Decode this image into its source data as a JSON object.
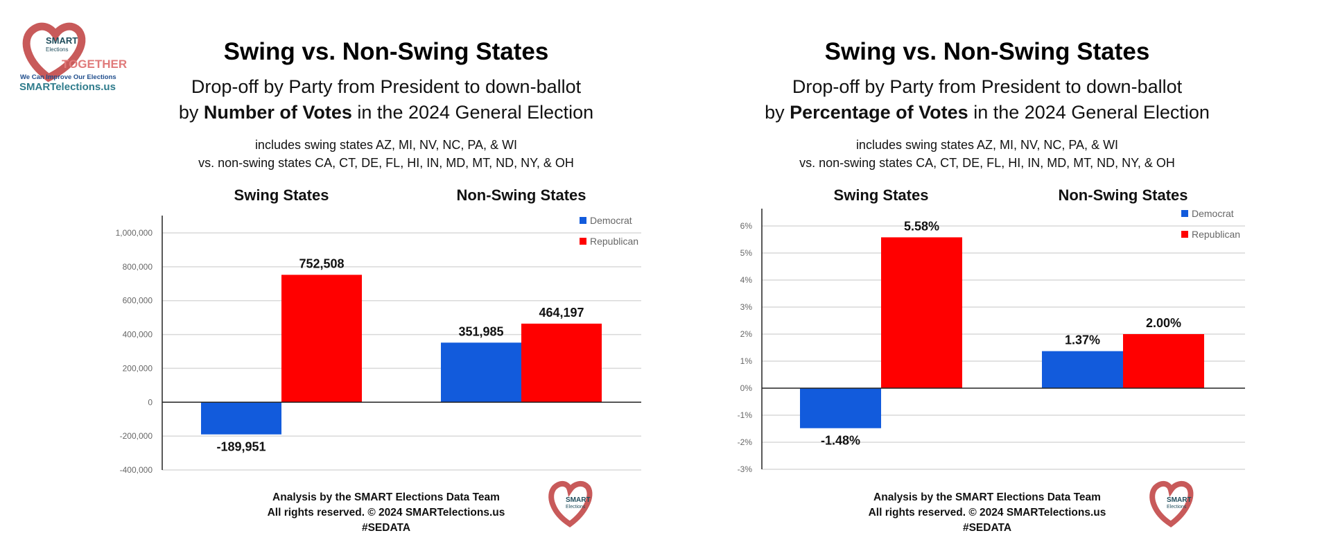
{
  "logo": {
    "brand_top": "SMART",
    "brand_bottom": "Elections",
    "together": "TOGETHER",
    "tagline": "We Can Improve Our Elections",
    "url": "SMARTelections.us"
  },
  "colors": {
    "democrat": "#125bdc",
    "republican": "#ff0000",
    "grid": "#d9d9d9",
    "logo_red": "#c85a5a",
    "logo_teal": "#2f7c8c"
  },
  "footer": {
    "line1": "Analysis by the SMART Elections Data Team",
    "line2": "All rights reserved. © 2024 SMARTelections.us",
    "line3": "#SEDATA"
  },
  "chart_data": [
    {
      "type": "bar",
      "title": "Swing vs. Non-Swing States",
      "subtitle_line1": "Drop-off by Party from President to down-ballot",
      "subtitle_prefix": "by ",
      "subtitle_bold": "Number of Votes",
      "subtitle_suffix": " in the 2024 General Election",
      "note_line1": "includes swing states AZ, MI, NV, NC, PA, & WI",
      "note_line2": "vs. non-swing states CA, CT, DE, FL, HI, IN, MD, MT, ND, NY, & OH",
      "categories": [
        "Swing States",
        "Non-Swing States"
      ],
      "series": [
        {
          "name": "Democrat",
          "values": [
            -189951,
            351985
          ],
          "labels": [
            "-189,951",
            "351,985"
          ]
        },
        {
          "name": "Republican",
          "values": [
            752508,
            464197
          ],
          "labels": [
            "752,508",
            "464,197"
          ]
        }
      ],
      "ylim": [
        -400000,
        1000000
      ],
      "yticks": [
        1000000,
        800000,
        600000,
        400000,
        200000,
        0,
        -200000,
        -400000
      ],
      "ytick_labels": [
        "1,000,000",
        "800,000",
        "600,000",
        "400,000",
        "200,000",
        "0",
        "-200,000",
        "-400,000"
      ],
      "grid": true,
      "legend": "top-right"
    },
    {
      "type": "bar",
      "title": "Swing vs. Non-Swing States",
      "subtitle_line1": "Drop-off by Party from President to down-ballot",
      "subtitle_prefix": "by ",
      "subtitle_bold": "Percentage of Votes",
      "subtitle_suffix": " in the 2024 General Election",
      "note_line1": "includes swing states AZ, MI, NV, NC, PA, & WI",
      "note_line2": "vs. non-swing states CA, CT, DE, FL, HI, IN, MD, MT, ND, NY, & OH",
      "categories": [
        "Swing States",
        "Non-Swing States"
      ],
      "series": [
        {
          "name": "Democrat",
          "values": [
            -1.48,
            1.37
          ],
          "labels": [
            "-1.48%",
            "1.37%"
          ]
        },
        {
          "name": "Republican",
          "values": [
            5.58,
            2.0
          ],
          "labels": [
            "5.58%",
            "2.00%"
          ]
        }
      ],
      "ylim": [
        -3,
        6
      ],
      "yticks": [
        6,
        5,
        4,
        3,
        2,
        1,
        0,
        -1,
        -2,
        -3
      ],
      "ytick_labels": [
        "6%",
        "5%",
        "4%",
        "3%",
        "2%",
        "1%",
        "0%",
        "-1%",
        "-2%",
        "-3%"
      ],
      "grid": true,
      "legend": "top-right"
    }
  ]
}
